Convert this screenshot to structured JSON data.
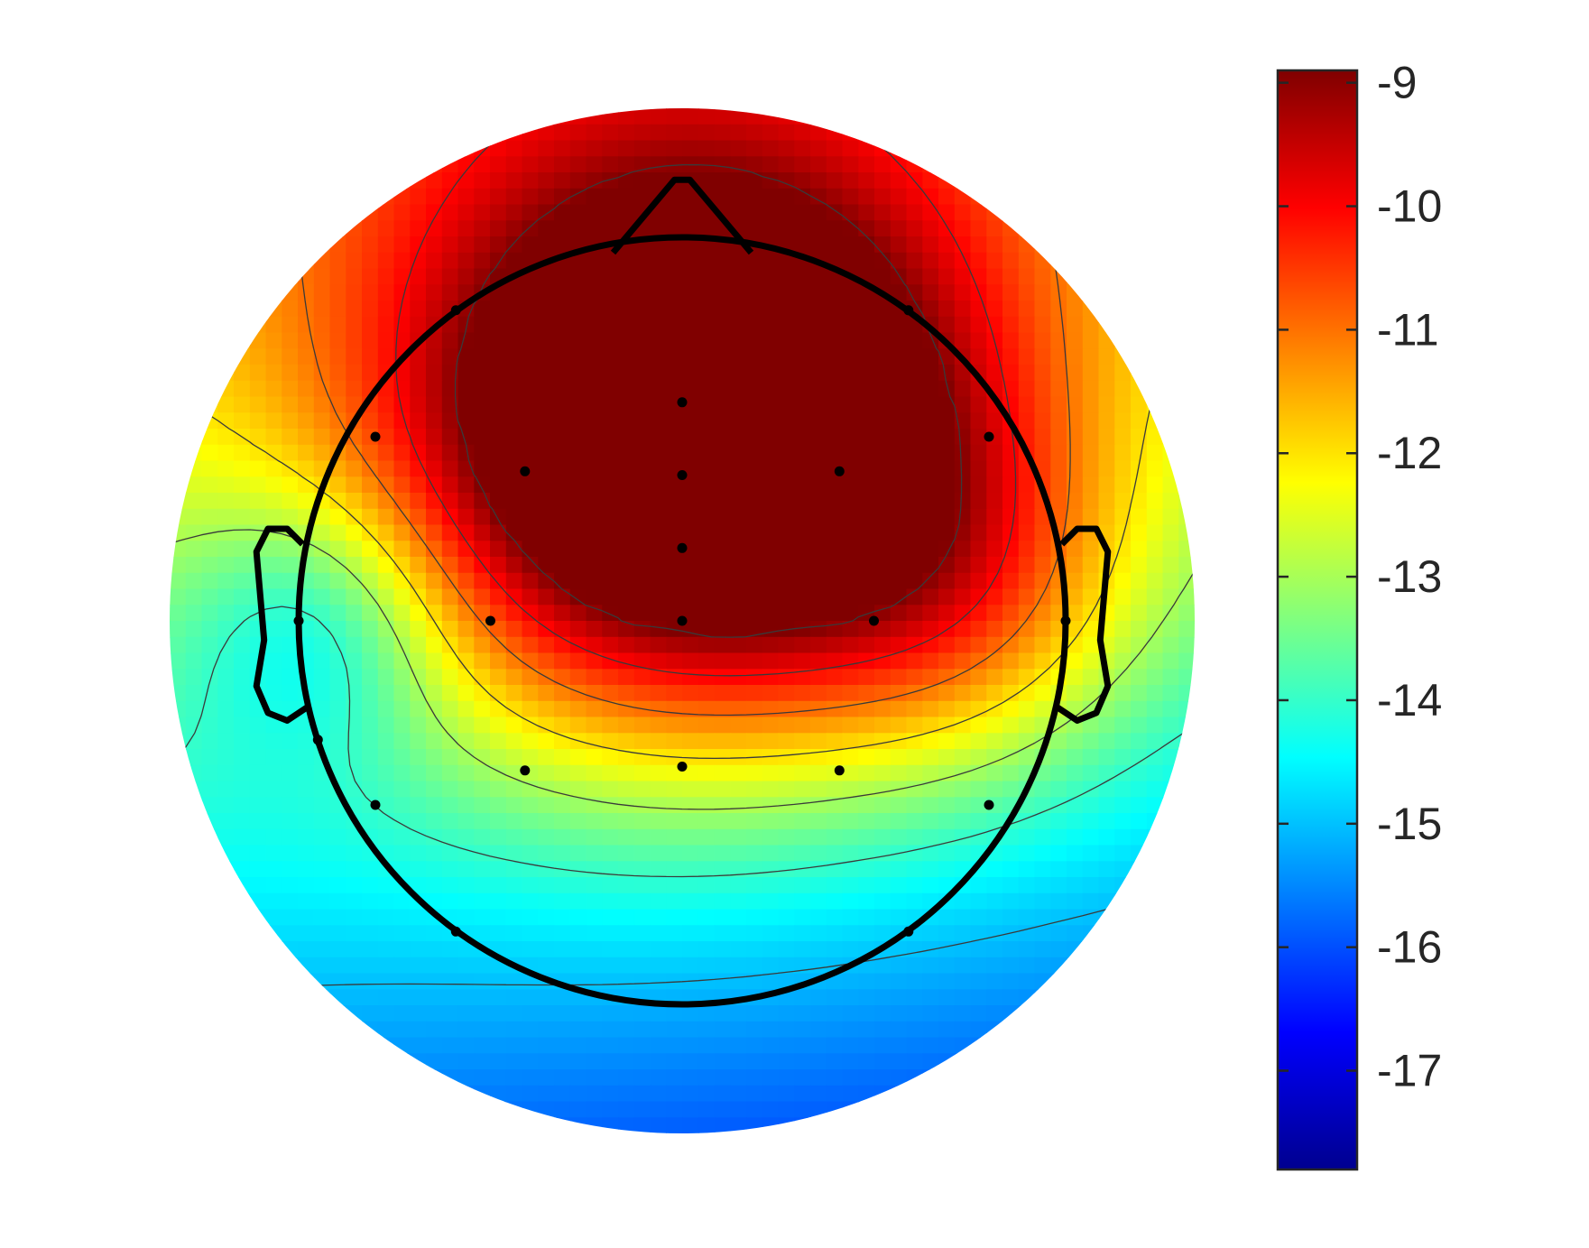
{
  "chart_data": {
    "type": "heatmap",
    "title": "",
    "colormap": "jet",
    "colorbar": {
      "limits": [
        -17.8,
        -8.9
      ],
      "ticks": [
        -9,
        -10,
        -11,
        -12,
        -13,
        -14,
        -15,
        -16,
        -17
      ],
      "tick_labels": [
        "-9",
        "-10",
        "-11",
        "-12",
        "-13",
        "-14",
        "-15",
        "-16",
        "-17"
      ]
    },
    "electrodes": [
      {
        "x": -0.95,
        "y": -0.31
      },
      {
        "x": -0.59,
        "y": 0.81
      },
      {
        "x": 0.59,
        "y": 0.81
      },
      {
        "x": 0.0,
        "y": 0.57
      },
      {
        "x": -0.8,
        "y": 0.48
      },
      {
        "x": 0.8,
        "y": 0.48
      },
      {
        "x": -0.41,
        "y": 0.39
      },
      {
        "x": 0.0,
        "y": 0.38
      },
      {
        "x": 0.41,
        "y": 0.39
      },
      {
        "x": 0.0,
        "y": 0.19
      },
      {
        "x": -1.0,
        "y": 0.0
      },
      {
        "x": -0.5,
        "y": 0.0
      },
      {
        "x": 0.0,
        "y": 0.0
      },
      {
        "x": 0.5,
        "y": 0.0
      },
      {
        "x": 1.0,
        "y": 0.0
      },
      {
        "x": -0.41,
        "y": -0.39
      },
      {
        "x": 0.0,
        "y": -0.38
      },
      {
        "x": 0.41,
        "y": -0.39
      },
      {
        "x": -0.8,
        "y": -0.48
      },
      {
        "x": 0.8,
        "y": -0.48
      },
      {
        "x": -0.59,
        "y": -0.81
      },
      {
        "x": 0.59,
        "y": -0.81
      }
    ]
  },
  "colors": {
    "outline": "#000000",
    "contour": "#3a3a3a",
    "tick_text": "#262626",
    "colorbar_border": "#262626"
  }
}
